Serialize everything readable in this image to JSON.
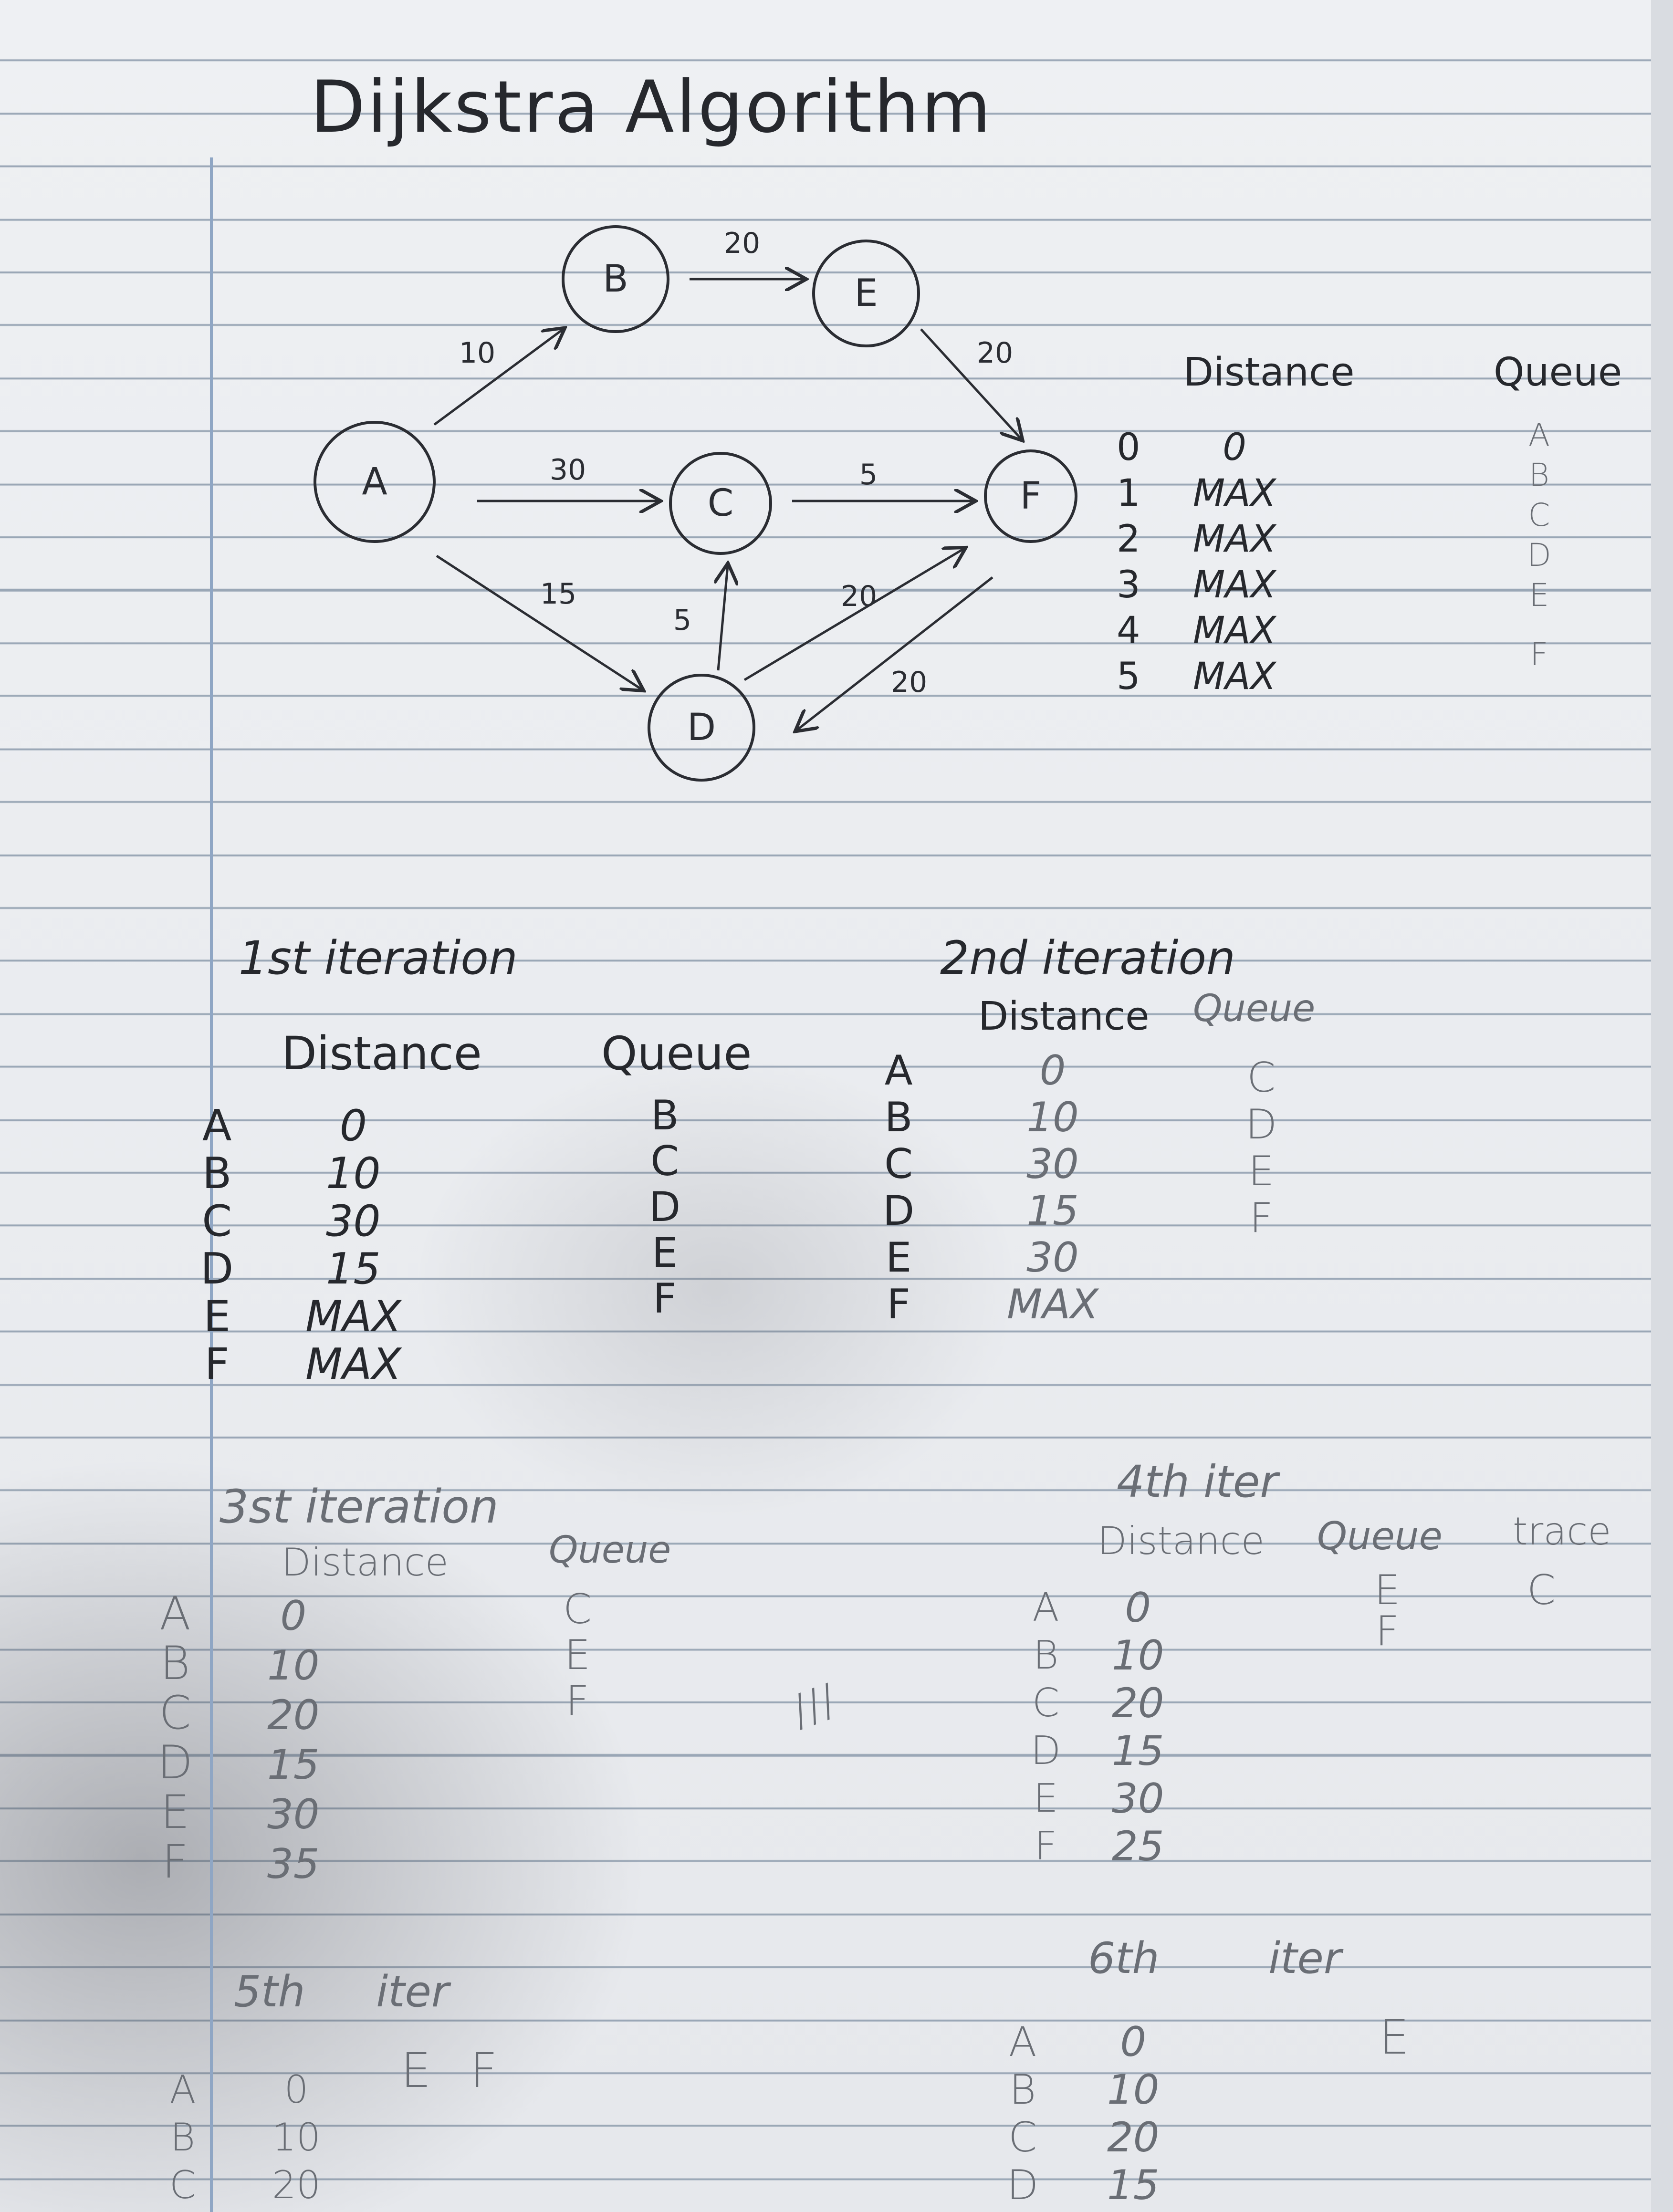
{
  "title": "Dijkstra Algorithm",
  "graph": {
    "nodes": [
      "A",
      "B",
      "C",
      "D",
      "E",
      "F"
    ],
    "edges": [
      {
        "from": "A",
        "to": "B",
        "weight": "10"
      },
      {
        "from": "B",
        "to": "E",
        "weight": "20"
      },
      {
        "from": "E",
        "to": "F",
        "weight": "20"
      },
      {
        "from": "A",
        "to": "C",
        "weight": "30"
      },
      {
        "from": "C",
        "to": "F",
        "weight": "5"
      },
      {
        "from": "A",
        "to": "D",
        "weight": "15"
      },
      {
        "from": "D",
        "to": "C",
        "weight": "5"
      },
      {
        "from": "D",
        "to": "F",
        "weight": "20"
      },
      {
        "from": "F",
        "to": "D",
        "weight": "20"
      }
    ]
  },
  "init_table": {
    "distance_header": "Distance",
    "queue_header": "Queue",
    "indices": [
      "0",
      "1",
      "2",
      "3",
      "4",
      "5"
    ],
    "distances": [
      "0",
      "MAX",
      "MAX",
      "MAX",
      "MAX",
      "MAX"
    ],
    "queue": [
      "A",
      "B",
      "C",
      "D",
      "E",
      "F"
    ]
  },
  "iter1": {
    "title": "1st iteration",
    "distance_header": "Distance",
    "queue_header": "Queue",
    "nodes": [
      "A",
      "B",
      "C",
      "D",
      "E",
      "F"
    ],
    "distances": [
      "0",
      "10",
      "30",
      "15",
      "MAX",
      "MAX"
    ],
    "queue": [
      "B",
      "C",
      "D",
      "E",
      "F"
    ]
  },
  "iter2": {
    "title": "2nd iteration",
    "distance_header": "Distance",
    "queue_header": "Queue",
    "nodes": [
      "A",
      "B",
      "C",
      "D",
      "E",
      "F"
    ],
    "distances": [
      "0",
      "10",
      "30",
      "15",
      "30",
      "MAX"
    ],
    "queue": [
      "C",
      "D",
      "E",
      "F"
    ]
  },
  "iter3": {
    "title": "3st iteration",
    "distance_header": "Distance",
    "queue_header": "Queue",
    "nodes": [
      "A",
      "B",
      "C",
      "D",
      "E",
      "F"
    ],
    "distances": [
      "0",
      "10",
      "20",
      "15",
      "30",
      "35"
    ],
    "queue": [
      "C",
      "E",
      "F"
    ]
  },
  "iter4": {
    "title": "4th iter",
    "distance_header": "Distance",
    "queue_header": "Queue",
    "trace_header": "trace",
    "nodes": [
      "A",
      "B",
      "C",
      "D",
      "E",
      "F"
    ],
    "distances": [
      "0",
      "10",
      "20",
      "15",
      "30",
      "25"
    ],
    "queue": [
      "E",
      "F"
    ],
    "trace": [
      "C"
    ]
  },
  "iter5": {
    "title": "5th iter",
    "nodes": [
      "A",
      "B",
      "C"
    ],
    "distances": [
      "0",
      "10",
      "20"
    ],
    "queue": "E F"
  },
  "iter6": {
    "title": "6th iter",
    "nodes": [
      "A",
      "B",
      "C",
      "D"
    ],
    "distances": [
      "0",
      "10",
      "20",
      "15"
    ],
    "queue": "E"
  },
  "ellipsis": "///"
}
